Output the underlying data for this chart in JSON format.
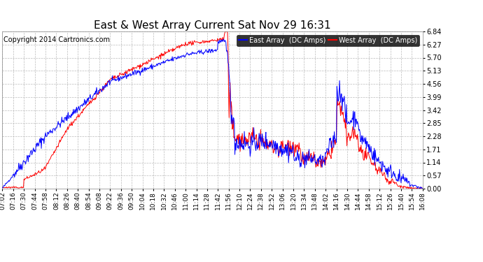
{
  "title": "East & West Array Current Sat Nov 29 16:31",
  "copyright": "Copyright 2014 Cartronics.com",
  "east_label": "East Array  (DC Amps)",
  "west_label": "West Array  (DC Amps)",
  "east_color": "#0000ff",
  "west_color": "#ff0000",
  "bg_color": "#ffffff",
  "grid_color": "#bbbbbb",
  "yticks": [
    0.0,
    0.57,
    1.14,
    1.71,
    2.28,
    2.85,
    3.42,
    3.99,
    4.56,
    5.13,
    5.7,
    6.27,
    6.84
  ],
  "ylim": [
    0.0,
    6.84
  ],
  "x_start_minutes": 422,
  "x_end_minutes": 968,
  "xtick_labels": [
    "07:02",
    "07:16",
    "07:30",
    "07:44",
    "07:58",
    "08:12",
    "08:26",
    "08:40",
    "08:54",
    "09:08",
    "09:22",
    "09:36",
    "09:50",
    "10:04",
    "10:18",
    "10:32",
    "10:46",
    "11:00",
    "11:14",
    "11:28",
    "11:42",
    "11:56",
    "12:10",
    "12:24",
    "12:38",
    "12:52",
    "13:06",
    "13:20",
    "13:34",
    "13:48",
    "14:02",
    "14:16",
    "14:30",
    "14:44",
    "14:58",
    "15:12",
    "15:26",
    "15:40",
    "15:54",
    "16:08"
  ],
  "xtick_minutes": [
    422,
    436,
    450,
    464,
    478,
    492,
    506,
    520,
    534,
    548,
    562,
    576,
    590,
    604,
    618,
    632,
    646,
    660,
    674,
    688,
    702,
    716,
    730,
    744,
    758,
    772,
    786,
    800,
    814,
    828,
    842,
    856,
    870,
    884,
    898,
    912,
    926,
    940,
    954,
    968
  ],
  "title_fontsize": 11,
  "tick_fontsize": 7,
  "copyright_fontsize": 7,
  "legend_fontsize": 7
}
